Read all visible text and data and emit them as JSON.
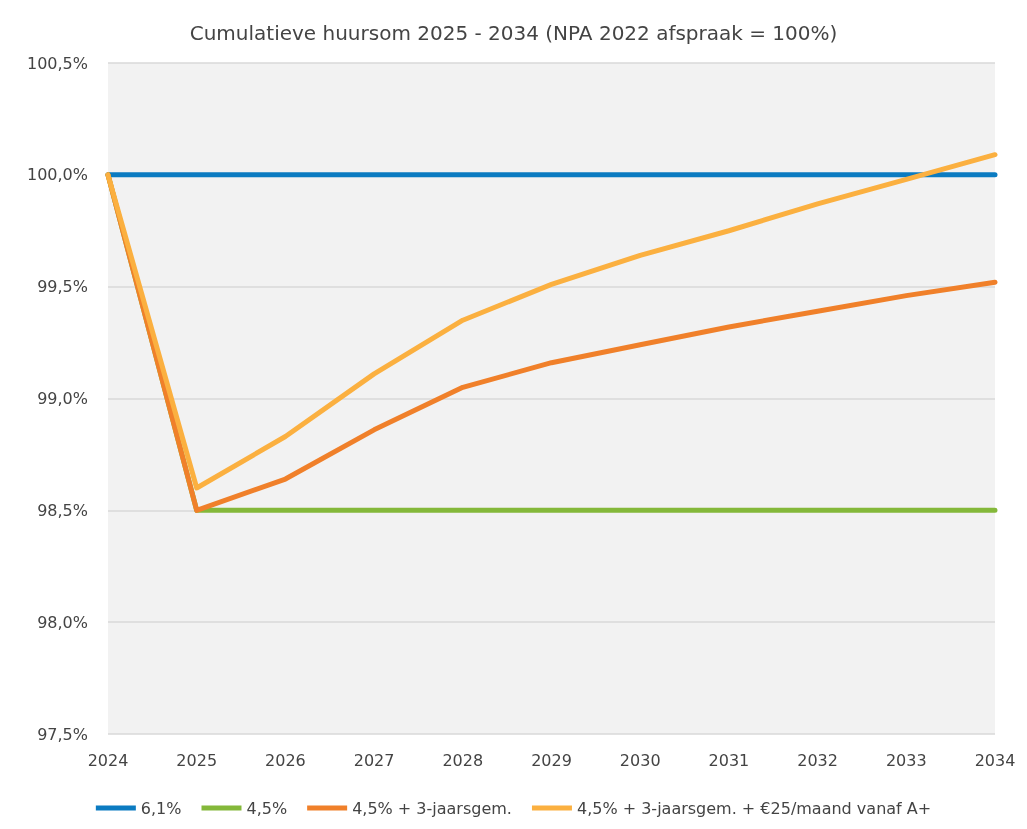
{
  "chart_data": {
    "type": "line",
    "title": "Cumulatieve huursom 2025 - 2034 (NPA 2022 afspraak = 100%)",
    "categories": [
      "2024",
      "2025",
      "2026",
      "2027",
      "2028",
      "2029",
      "2030",
      "2031",
      "2032",
      "2033",
      "2034"
    ],
    "series": [
      {
        "name": "6,1%",
        "color": "#0b7bc1",
        "values": [
          100,
          100,
          100,
          100,
          100,
          100,
          100,
          100,
          100,
          100,
          100
        ]
      },
      {
        "name": "4,5%",
        "color": "#84b83a",
        "values": [
          100,
          98.5,
          98.5,
          98.5,
          98.5,
          98.5,
          98.5,
          98.5,
          98.5,
          98.5,
          98.5
        ]
      },
      {
        "name": "4,5% + 3-jaarsgem.",
        "color": "#f0802a",
        "values": [
          100,
          98.5,
          98.64,
          98.86,
          99.05,
          99.16,
          99.24,
          99.32,
          99.39,
          99.46,
          99.52
        ]
      },
      {
        "name": "4,5% + 3-jaarsgem. + €25/maand vanaf A+",
        "color": "#fbb040",
        "values": [
          100,
          98.6,
          98.83,
          99.11,
          99.35,
          99.51,
          99.64,
          99.75,
          99.87,
          99.98,
          100.09
        ]
      }
    ],
    "ylim": [
      97.5,
      100.5
    ],
    "yticks": [
      {
        "value": 97.5,
        "label": "97,5%"
      },
      {
        "value": 98,
        "label": "98,0%"
      },
      {
        "value": 98.5,
        "label": "98,5%"
      },
      {
        "value": 99,
        "label": "99,0%"
      },
      {
        "value": 99.5,
        "label": "99,5%"
      },
      {
        "value": 100,
        "label": "100,0%"
      },
      {
        "value": 100.5,
        "label": "100,5%"
      }
    ],
    "grid": "y",
    "legend": "bottom",
    "marker": "none",
    "line_style": "solid"
  }
}
